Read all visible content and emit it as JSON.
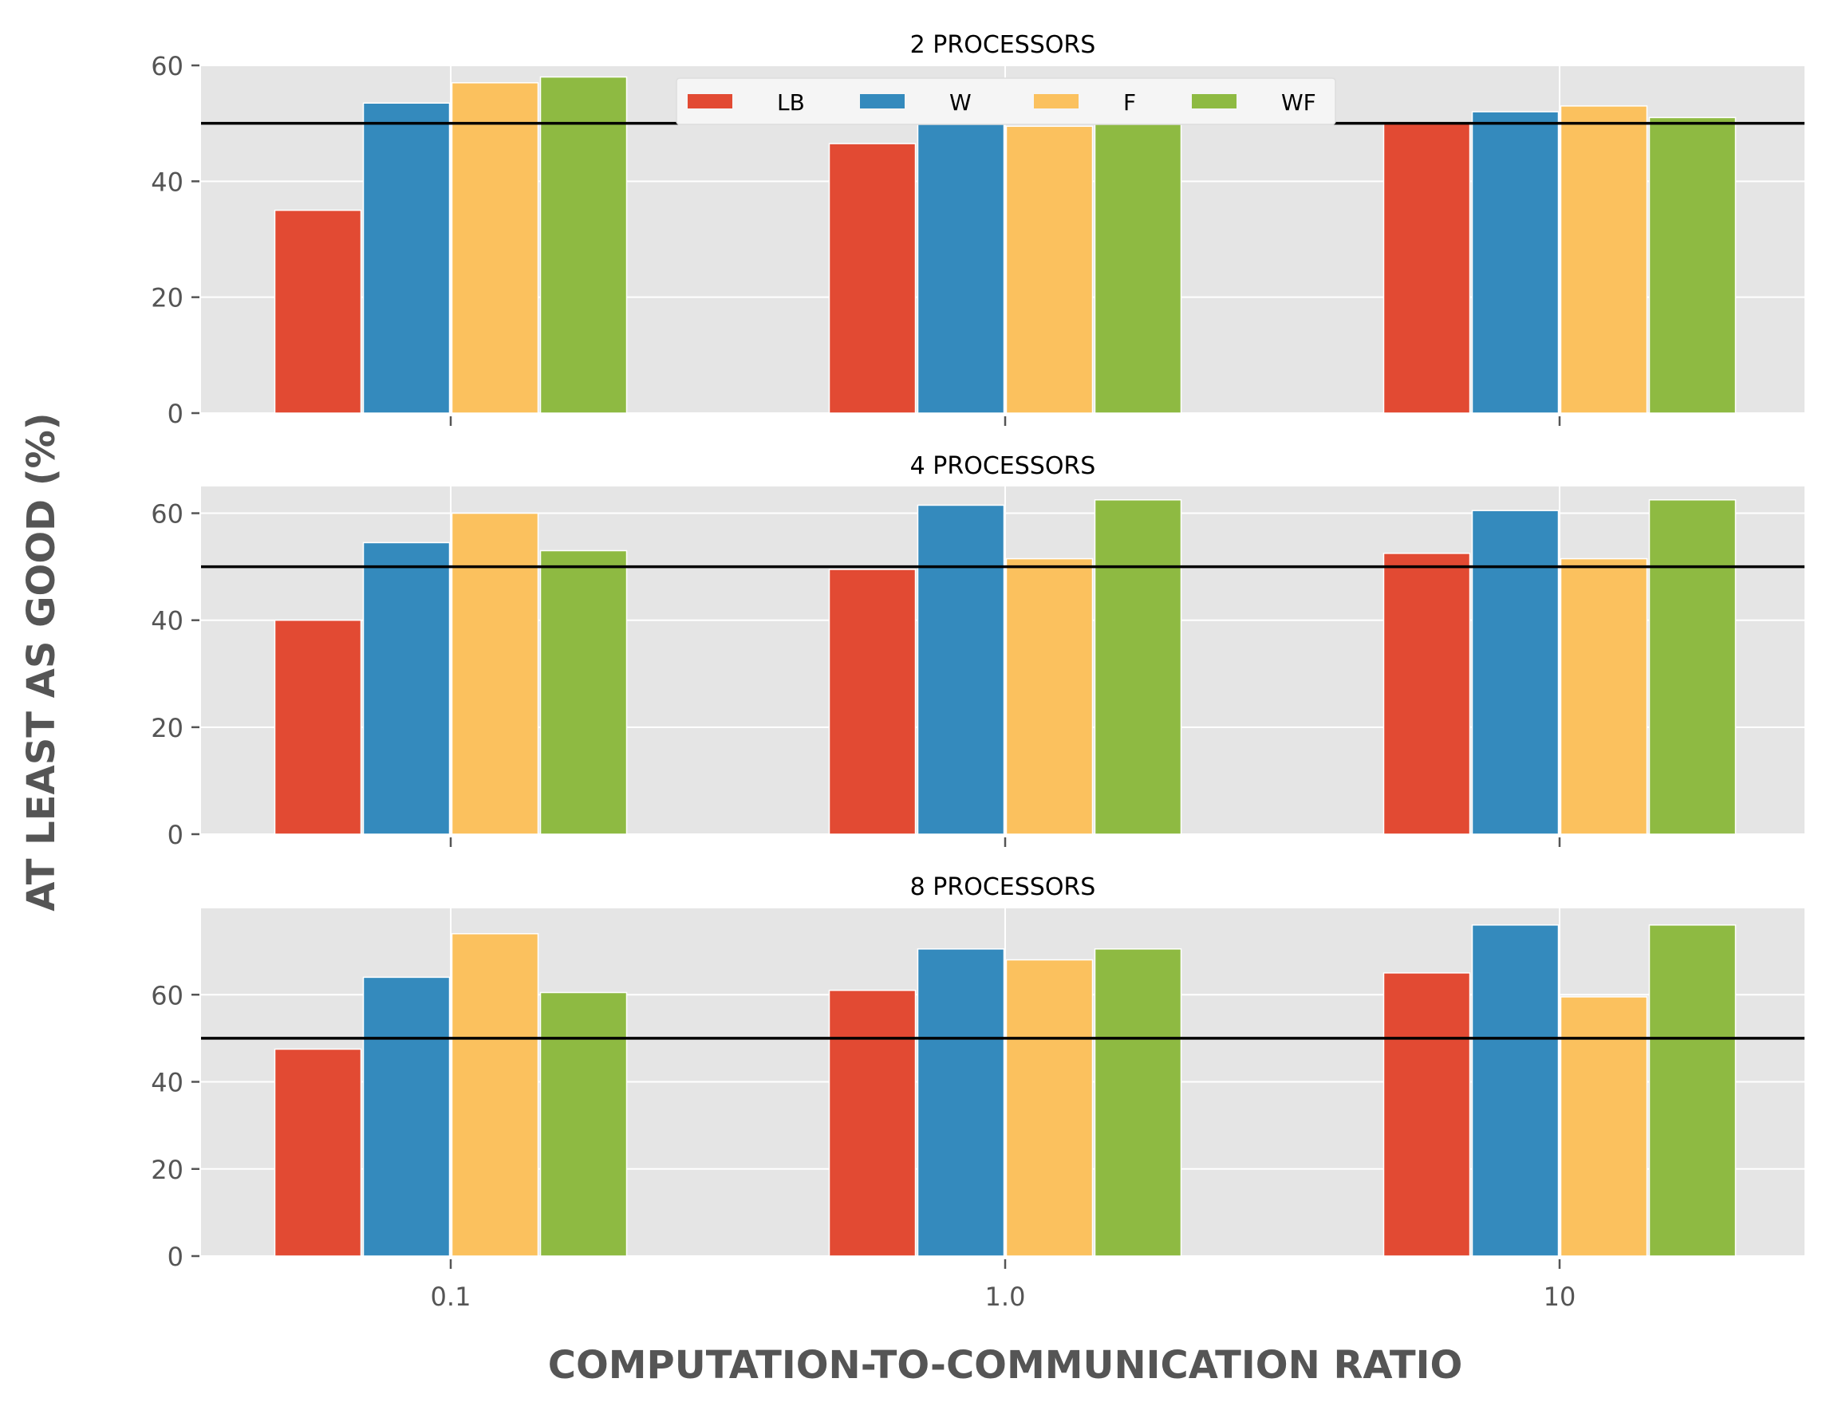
{
  "chart_data": {
    "type": "bar",
    "xlabel": "COMPUTATION-TO-COMMUNICATION RATIO",
    "ylabel": "AT LEAST AS GOOD (%)",
    "categories": [
      "0.1",
      "1.0",
      "10"
    ],
    "reference_line": 50,
    "grid": true,
    "legend": {
      "placement": "top-center (first panel)",
      "entries": [
        "LB",
        "W",
        "F",
        "WF"
      ]
    },
    "colors": {
      "LB": "#E24A33",
      "W": "#348ABD",
      "F": "#FBC15E",
      "WF": "#8EBA42",
      "panel_bg": "#E5E5E5",
      "grid": "#FFFFFF",
      "reference_line": "#000000",
      "tick_text": "#555555"
    },
    "panels": [
      {
        "title": "2 PROCESSORS",
        "ylim": [
          0,
          60
        ],
        "yticks": [
          "0",
          "20",
          "40",
          "60"
        ],
        "series": [
          {
            "name": "LB",
            "values": [
              35,
              46.5,
              50
            ]
          },
          {
            "name": "W",
            "values": [
              53.5,
              51,
              52
            ]
          },
          {
            "name": "F",
            "values": [
              57,
              49.5,
              53
            ]
          },
          {
            "name": "WF",
            "values": [
              58,
              52,
              51
            ]
          }
        ]
      },
      {
        "title": "4 PROCESSORS",
        "ylim": [
          0,
          65
        ],
        "yticks": [
          "0",
          "20",
          "40",
          "60"
        ],
        "series": [
          {
            "name": "LB",
            "values": [
              40,
              49.5,
              52.5
            ]
          },
          {
            "name": "W",
            "values": [
              54.5,
              61.5,
              60.5
            ]
          },
          {
            "name": "F",
            "values": [
              60,
              51.5,
              51.5
            ]
          },
          {
            "name": "WF",
            "values": [
              53,
              62.5,
              62.5
            ]
          }
        ]
      },
      {
        "title": "8 PROCESSORS",
        "ylim": [
          0,
          80
        ],
        "yticks": [
          "0",
          "20",
          "40",
          "60"
        ],
        "series": [
          {
            "name": "LB",
            "values": [
              47.5,
              61,
              65
            ]
          },
          {
            "name": "W",
            "values": [
              64,
              70.5,
              76
            ]
          },
          {
            "name": "F",
            "values": [
              74,
              68,
              59.5
            ]
          },
          {
            "name": "WF",
            "values": [
              60.5,
              70.5,
              76
            ]
          }
        ]
      }
    ]
  }
}
